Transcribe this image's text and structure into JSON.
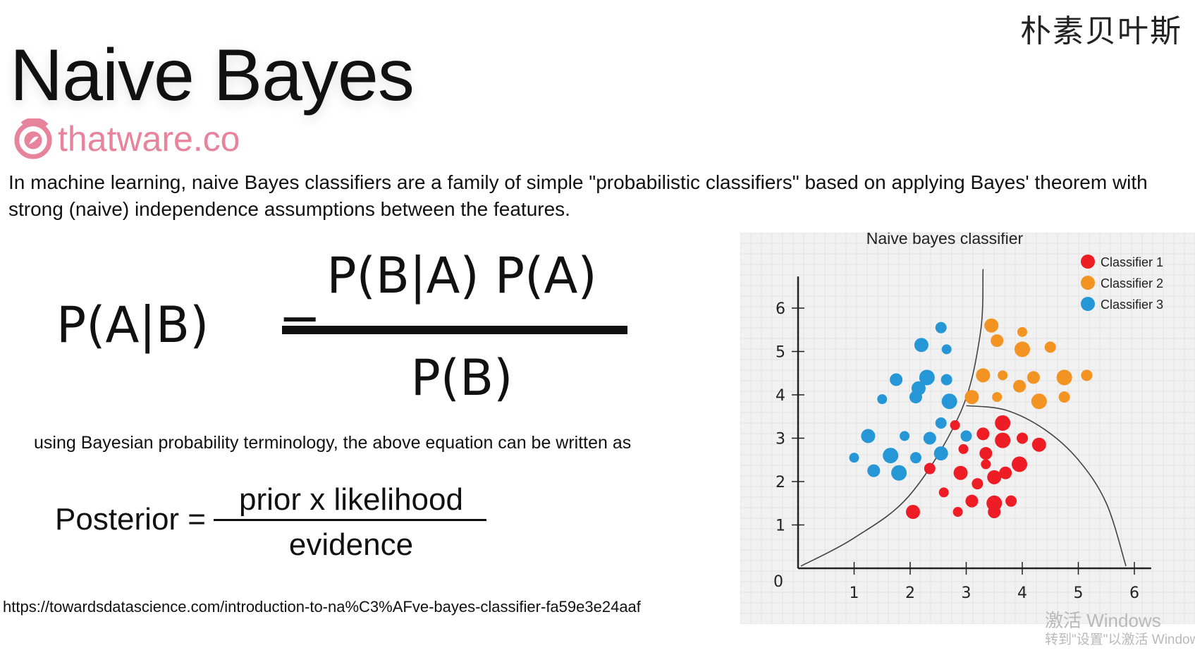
{
  "header": {
    "cn_title": "朴素贝叶斯",
    "title": "Naive Bayes",
    "logo_text": "thatware.co"
  },
  "description": "In machine learning, naive Bayes classifiers are a family of simple \"probabilistic classifiers\" based on applying Bayes' theorem with strong (naive) independence assumptions between the features.",
  "formula": {
    "lhs": "P(A|B)",
    "eq": "=",
    "numerator": "P(B|A) P(A)",
    "denominator": "P(B)"
  },
  "terminology": "using Bayesian probability terminology, the above equation can be written as",
  "posterior": {
    "lhs": "Posterior =",
    "numerator": "prior x likelihood",
    "denominator": "evidence"
  },
  "url": "https://towardsdatascience.com/introduction-to-na%C3%AFve-bayes-classifier-fa59e3e24aaf",
  "watermark": {
    "line1": "激活 Windows",
    "line2": "转到\"设置\"以激活 Windows"
  },
  "colors": {
    "classifier1": "#ee1c25",
    "classifier2": "#f39321",
    "classifier3": "#2596d6",
    "logo": "#e7849c",
    "panel": "#f1f1f1"
  },
  "chart_data": {
    "type": "scatter",
    "title": "Naive bayes classifier",
    "xlim": [
      0,
      6.5
    ],
    "ylim": [
      0,
      6.6
    ],
    "x_ticks": [
      "1",
      "2",
      "3",
      "4",
      "5",
      "6"
    ],
    "y_ticks": [
      "1",
      "2",
      "3",
      "4",
      "5",
      "6"
    ],
    "origin_label": "0",
    "grid": true,
    "legend_position": "top-right",
    "series": [
      {
        "name": "Classifier 1",
        "color": "#ee1c25",
        "points": [
          [
            2.8,
            3.3
          ],
          [
            3.3,
            3.1
          ],
          [
            3.65,
            3.35
          ],
          [
            4.0,
            3.0
          ],
          [
            4.3,
            2.85
          ],
          [
            2.95,
            2.75
          ],
          [
            3.35,
            2.65
          ],
          [
            3.65,
            2.95
          ],
          [
            2.35,
            2.3
          ],
          [
            2.9,
            2.2
          ],
          [
            3.35,
            2.4
          ],
          [
            3.7,
            2.2
          ],
          [
            3.95,
            2.4
          ],
          [
            3.2,
            1.95
          ],
          [
            3.5,
            2.1
          ],
          [
            2.6,
            1.75
          ],
          [
            3.1,
            1.55
          ],
          [
            3.5,
            1.5
          ],
          [
            3.8,
            1.55
          ],
          [
            2.05,
            1.3
          ],
          [
            2.85,
            1.3
          ],
          [
            3.5,
            1.3
          ]
        ]
      },
      {
        "name": "Classifier 2",
        "color": "#f39321",
        "points": [
          [
            3.45,
            5.6
          ],
          [
            4.0,
            5.45
          ],
          [
            3.55,
            5.25
          ],
          [
            4.0,
            5.05
          ],
          [
            4.5,
            5.1
          ],
          [
            3.3,
            4.45
          ],
          [
            3.65,
            4.45
          ],
          [
            4.2,
            4.4
          ],
          [
            4.75,
            4.4
          ],
          [
            5.15,
            4.45
          ],
          [
            3.1,
            3.95
          ],
          [
            3.55,
            3.95
          ],
          [
            3.95,
            4.2
          ],
          [
            4.3,
            3.85
          ],
          [
            4.75,
            3.95
          ]
        ]
      },
      {
        "name": "Classifier 3",
        "color": "#2596d6",
        "points": [
          [
            2.55,
            5.55
          ],
          [
            2.2,
            5.15
          ],
          [
            2.65,
            5.05
          ],
          [
            1.75,
            4.35
          ],
          [
            2.3,
            4.4
          ],
          [
            2.65,
            4.35
          ],
          [
            2.15,
            4.15
          ],
          [
            1.5,
            3.9
          ],
          [
            2.1,
            3.95
          ],
          [
            2.7,
            3.85
          ],
          [
            2.55,
            3.35
          ],
          [
            1.25,
            3.05
          ],
          [
            1.9,
            3.05
          ],
          [
            2.35,
            3.0
          ],
          [
            1.65,
            2.6
          ],
          [
            2.1,
            2.55
          ],
          [
            2.55,
            2.65
          ],
          [
            1.0,
            2.55
          ],
          [
            1.35,
            2.25
          ],
          [
            1.8,
            2.2
          ],
          [
            3.0,
            3.05
          ]
        ]
      }
    ],
    "boundaries": [
      {
        "points": [
          [
            0.05,
            0.05
          ],
          [
            1.0,
            0.7
          ],
          [
            2.0,
            1.7
          ],
          [
            2.9,
            3.6
          ],
          [
            3.25,
            5.4
          ],
          [
            3.3,
            6.9
          ]
        ]
      },
      {
        "points": [
          [
            3.0,
            3.75
          ],
          [
            3.7,
            3.65
          ],
          [
            4.4,
            3.2
          ],
          [
            5.0,
            2.5
          ],
          [
            5.5,
            1.5
          ],
          [
            5.85,
            0.05
          ]
        ]
      }
    ]
  }
}
